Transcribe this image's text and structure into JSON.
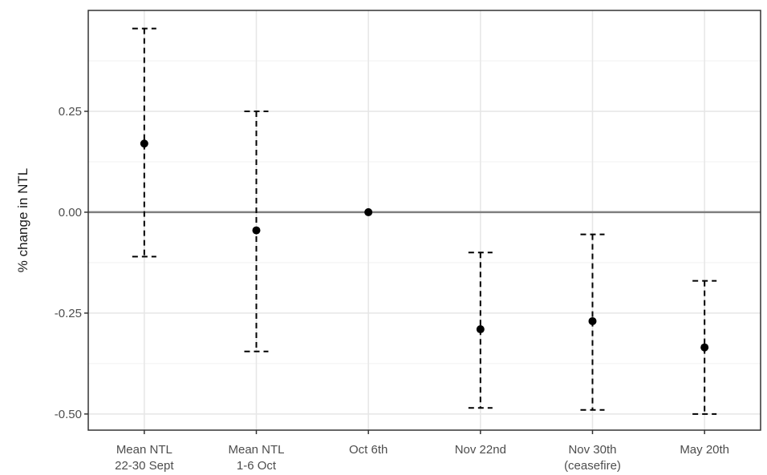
{
  "chart_data": {
    "type": "scatter",
    "title": "",
    "xlabel": "",
    "ylabel": "% change in NTL",
    "categories": [
      [
        "Mean NTL",
        "22-30 Sept"
      ],
      [
        "Mean NTL",
        "1-6 Oct"
      ],
      [
        "Oct 6th"
      ],
      [
        "Nov 22nd"
      ],
      [
        "Nov 30th",
        "(ceasefire)"
      ],
      [
        "May 20th"
      ]
    ],
    "estimate": [
      0.17,
      -0.045,
      0.0,
      -0.29,
      -0.27,
      -0.335
    ],
    "ci_low": [
      -0.11,
      -0.345,
      0.0,
      -0.485,
      -0.49,
      -0.5
    ],
    "ci_high": [
      0.455,
      0.25,
      0.0,
      -0.1,
      -0.055,
      -0.17
    ],
    "ylim": [
      -0.54,
      0.5
    ],
    "yticks": [
      0.25,
      0.0,
      -0.25,
      -0.5
    ],
    "ytick_labels": [
      "0.25",
      "0.00",
      "-0.25",
      "-0.50"
    ],
    "reference_line": 0,
    "grid": true,
    "colors": {
      "point": "#000000",
      "errorbar": "#000000",
      "grid_major": "#e6e6e6",
      "grid_minor": "#f2f2f2",
      "reference": "#7f7f7f",
      "panel_border": "#333333"
    }
  }
}
